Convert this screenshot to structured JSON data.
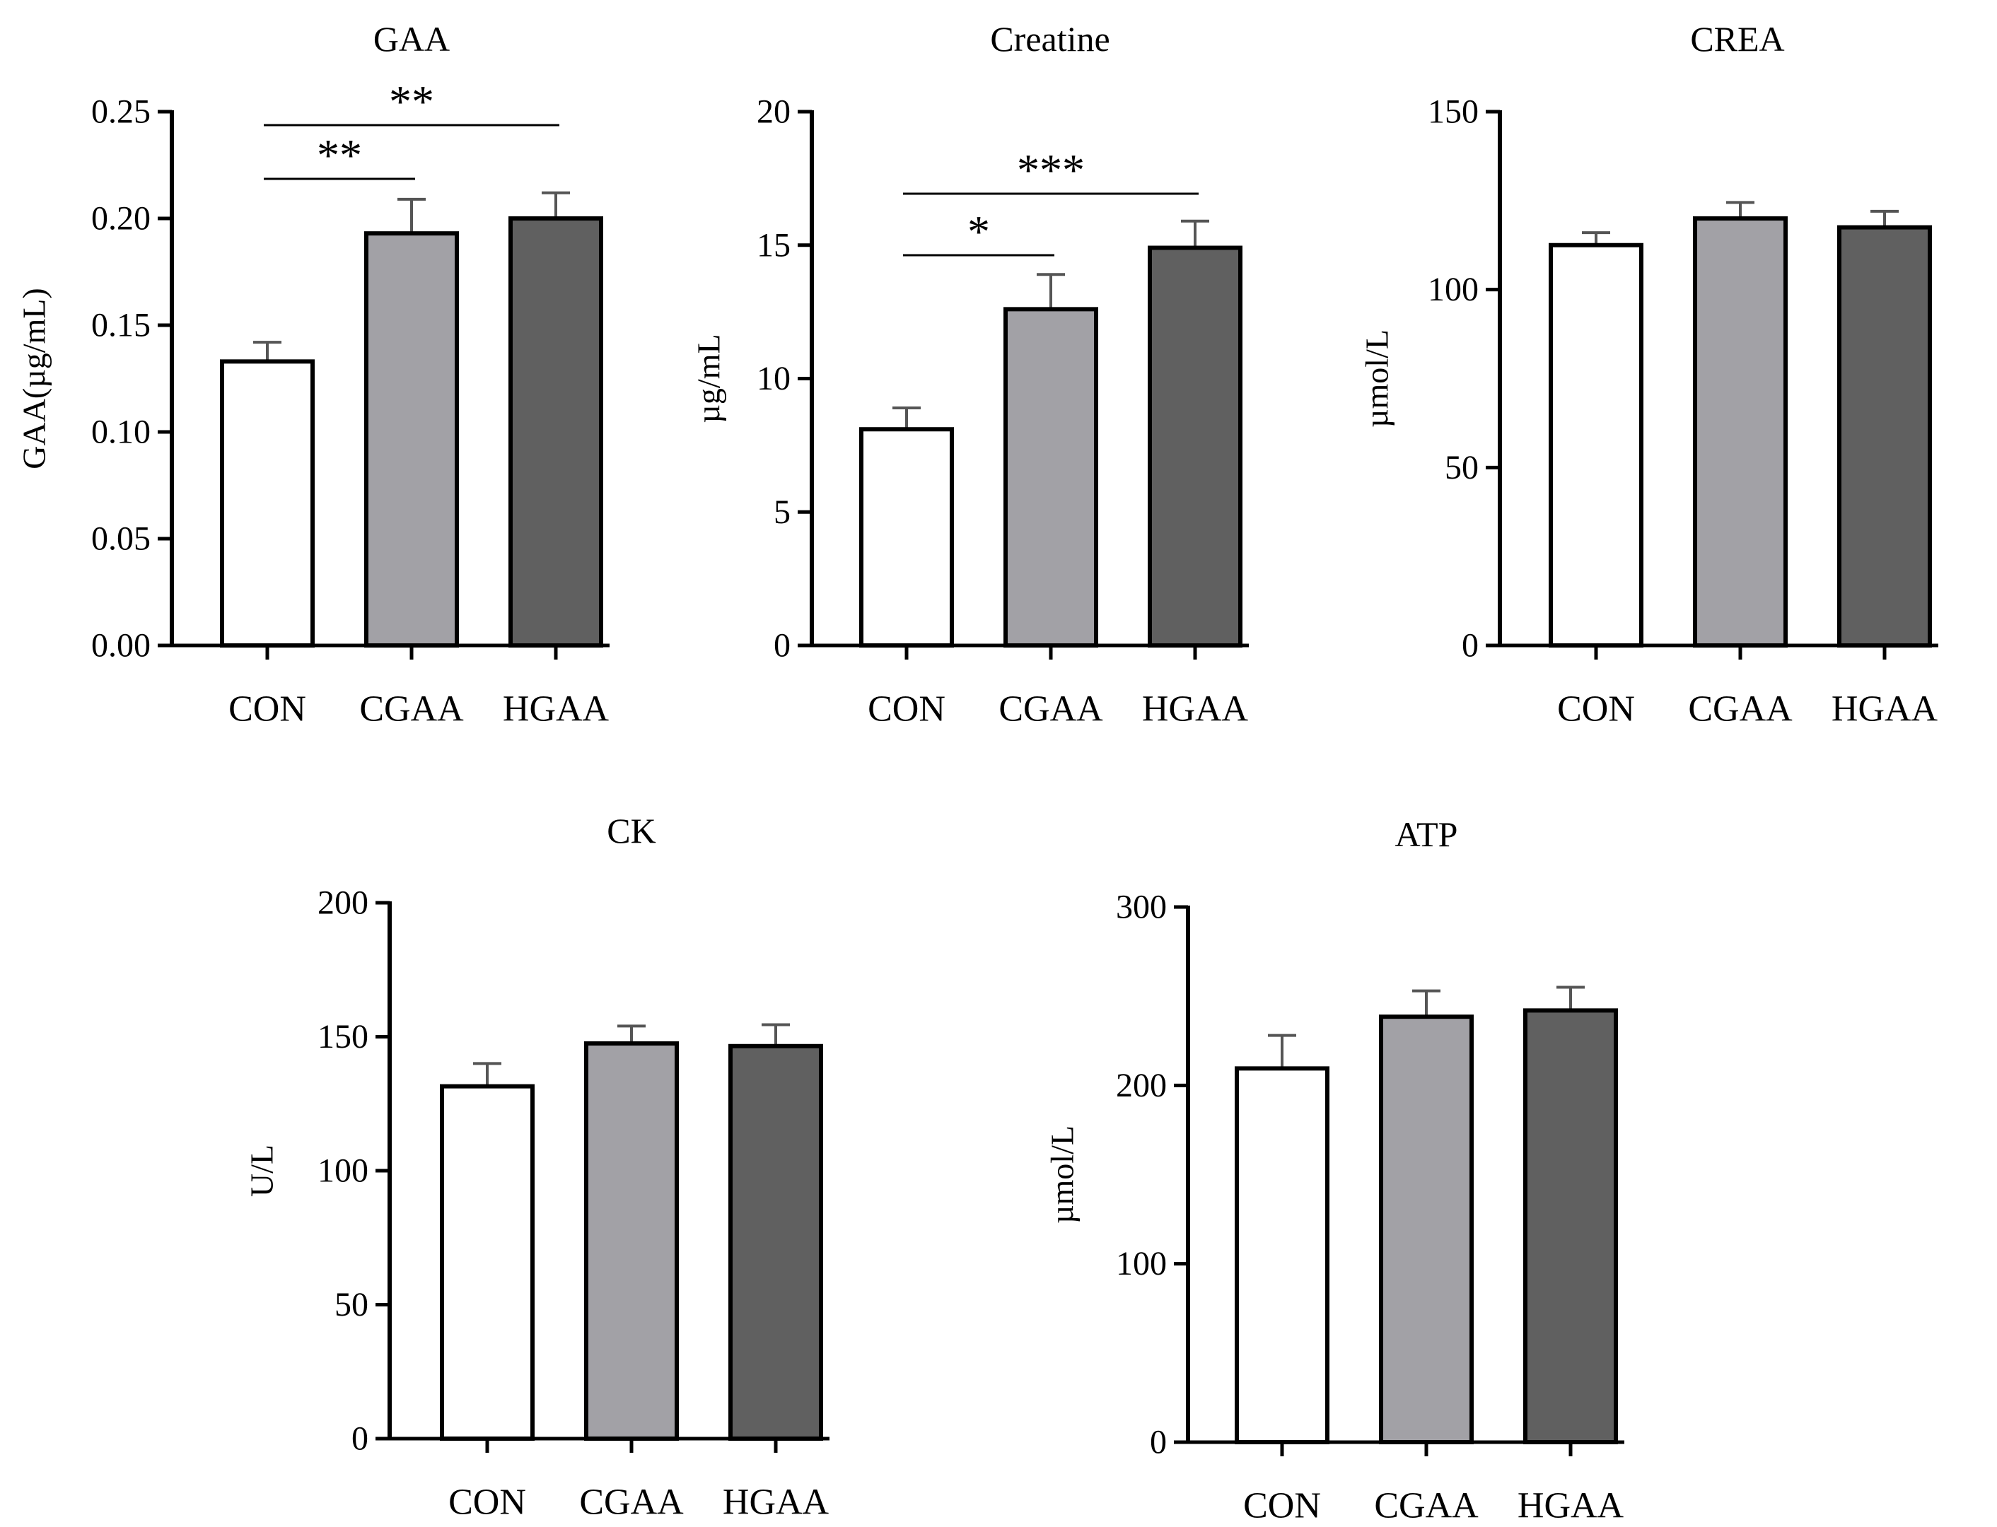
{
  "colors": {
    "axis": "#000000",
    "con_fill": "#ffffff",
    "cgaa_fill": "#a2a1a6",
    "hgaa_fill": "#606060",
    "error_bar": "#555555",
    "sig_line": "#000000"
  },
  "chart_data": [
    {
      "type": "bar",
      "title": "GAA",
      "ylabel": "GAA(µg/mL)",
      "xlabel": "",
      "categories": [
        "CON",
        "CGAA",
        "HGAA"
      ],
      "values": [
        0.133,
        0.193,
        0.2
      ],
      "errors": [
        0.009,
        0.016,
        0.012
      ],
      "ylim": [
        0,
        0.25
      ],
      "yticks": [
        "0.00",
        "0.05",
        "0.10",
        "0.15",
        "0.20",
        "0.25"
      ],
      "significance": [
        {
          "from": "CON",
          "to": "CGAA",
          "label": "**"
        },
        {
          "from": "CON",
          "to": "HGAA",
          "label": "**"
        }
      ]
    },
    {
      "type": "bar",
      "title": "Creatine",
      "ylabel": "µg/mL",
      "xlabel": "",
      "categories": [
        "CON",
        "CGAA",
        "HGAA"
      ],
      "values": [
        8.1,
        12.6,
        14.9
      ],
      "errors": [
        0.8,
        1.3,
        1.0
      ],
      "ylim": [
        0,
        20
      ],
      "yticks": [
        "0",
        "5",
        "10",
        "15",
        "20"
      ],
      "significance": [
        {
          "from": "CON",
          "to": "CGAA",
          "label": "*"
        },
        {
          "from": "CON",
          "to": "HGAA",
          "label": "***"
        }
      ]
    },
    {
      "type": "bar",
      "title": "CREA",
      "ylabel": "µmol/L",
      "xlabel": "",
      "categories": [
        "CON",
        "CGAA",
        "HGAA"
      ],
      "values": [
        112.5,
        120.0,
        117.5
      ],
      "errors": [
        3.5,
        4.5,
        4.5
      ],
      "ylim": [
        0,
        150
      ],
      "yticks": [
        "0",
        "50",
        "100",
        "150"
      ],
      "significance": []
    },
    {
      "type": "bar",
      "title": "CK",
      "ylabel": "U/L",
      "xlabel": "",
      "categories": [
        "CON",
        "CGAA",
        "HGAA"
      ],
      "values": [
        131.5,
        147.5,
        146.5
      ],
      "errors": [
        8.5,
        6.5,
        8.0
      ],
      "ylim": [
        0,
        200
      ],
      "yticks": [
        "0",
        "50",
        "100",
        "150",
        "200"
      ],
      "significance": []
    },
    {
      "type": "bar",
      "title": "ATP",
      "ylabel": "µmol/L",
      "xlabel": "",
      "categories": [
        "CON",
        "CGAA",
        "HGAA"
      ],
      "values": [
        209.5,
        238.5,
        242.0
      ],
      "errors": [
        18.5,
        14.5,
        13.0
      ],
      "ylim": [
        0,
        300
      ],
      "yticks": [
        "0",
        "100",
        "200",
        "300"
      ],
      "significance": []
    }
  ]
}
